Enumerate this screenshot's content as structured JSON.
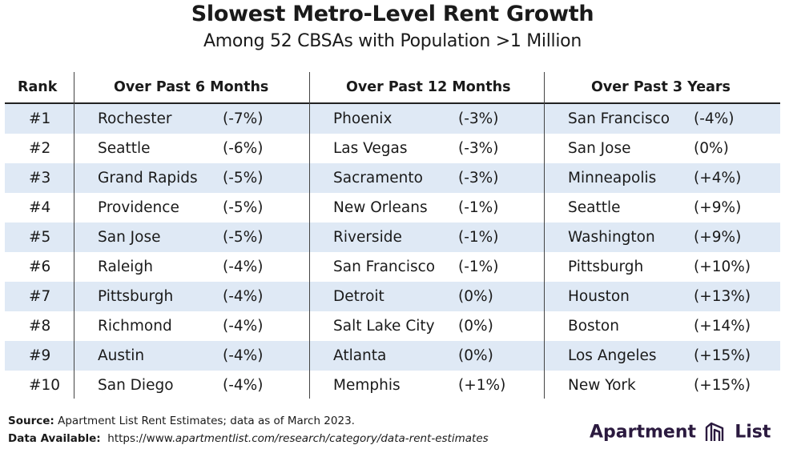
{
  "title": "Slowest Metro-Level Rent Growth",
  "subtitle": "Among 52 CBSAs with Population >1 Million",
  "chart_data": {
    "type": "table",
    "columns": [
      "Rank",
      "Over Past 6 Months",
      "Over Past 12 Months",
      "Over Past 3 Years"
    ],
    "rows": [
      {
        "rank": "#1",
        "m6_city": "Rochester",
        "m6_val": "(-7%)",
        "m12_city": "Phoenix",
        "m12_val": "(-3%)",
        "y3_city": "San Francisco",
        "y3_val": "(-4%)"
      },
      {
        "rank": "#2",
        "m6_city": "Seattle",
        "m6_val": "(-6%)",
        "m12_city": "Las Vegas",
        "m12_val": "(-3%)",
        "y3_city": "San Jose",
        "y3_val": "(0%)"
      },
      {
        "rank": "#3",
        "m6_city": "Grand Rapids",
        "m6_val": "(-5%)",
        "m12_city": "Sacramento",
        "m12_val": "(-3%)",
        "y3_city": "Minneapolis",
        "y3_val": "(+4%)"
      },
      {
        "rank": "#4",
        "m6_city": "Providence",
        "m6_val": "(-5%)",
        "m12_city": "New Orleans",
        "m12_val": "(-1%)",
        "y3_city": "Seattle",
        "y3_val": "(+9%)"
      },
      {
        "rank": "#5",
        "m6_city": "San Jose",
        "m6_val": "(-5%)",
        "m12_city": "Riverside",
        "m12_val": "(-1%)",
        "y3_city": "Washington",
        "y3_val": "(+9%)"
      },
      {
        "rank": "#6",
        "m6_city": "Raleigh",
        "m6_val": "(-4%)",
        "m12_city": "San Francisco",
        "m12_val": "(-1%)",
        "y3_city": "Pittsburgh",
        "y3_val": "(+10%)"
      },
      {
        "rank": "#7",
        "m6_city": "Pittsburgh",
        "m6_val": "(-4%)",
        "m12_city": "Detroit",
        "m12_val": "(0%)",
        "y3_city": "Houston",
        "y3_val": "(+13%)"
      },
      {
        "rank": "#8",
        "m6_city": "Richmond",
        "m6_val": "(-4%)",
        "m12_city": "Salt Lake City",
        "m12_val": "(0%)",
        "y3_city": "Boston",
        "y3_val": "(+14%)"
      },
      {
        "rank": "#9",
        "m6_city": "Austin",
        "m6_val": "(-4%)",
        "m12_city": "Atlanta",
        "m12_val": "(0%)",
        "y3_city": "Los Angeles",
        "y3_val": "(+15%)"
      },
      {
        "rank": "#10",
        "m6_city": "San Diego",
        "m6_val": "(-4%)",
        "m12_city": "Memphis",
        "m12_val": "(+1%)",
        "y3_city": "New York",
        "y3_val": "(+15%)"
      }
    ]
  },
  "footer": {
    "source_label": "Source:",
    "source_text": "Apartment List Rent Estimates; data as of March 2023.",
    "available_label": "Data Available:",
    "available_prefix": "https://www.",
    "available_link": "apartmentlist.com/research/category/data-rent-estimates"
  },
  "logo": {
    "word1": "Apartment",
    "word2": "List",
    "icon": "apartment-list-logo-icon",
    "color": "#2b1a3f"
  },
  "colors": {
    "row_shade": "#dfe9f5",
    "text": "#1a1a1a"
  }
}
